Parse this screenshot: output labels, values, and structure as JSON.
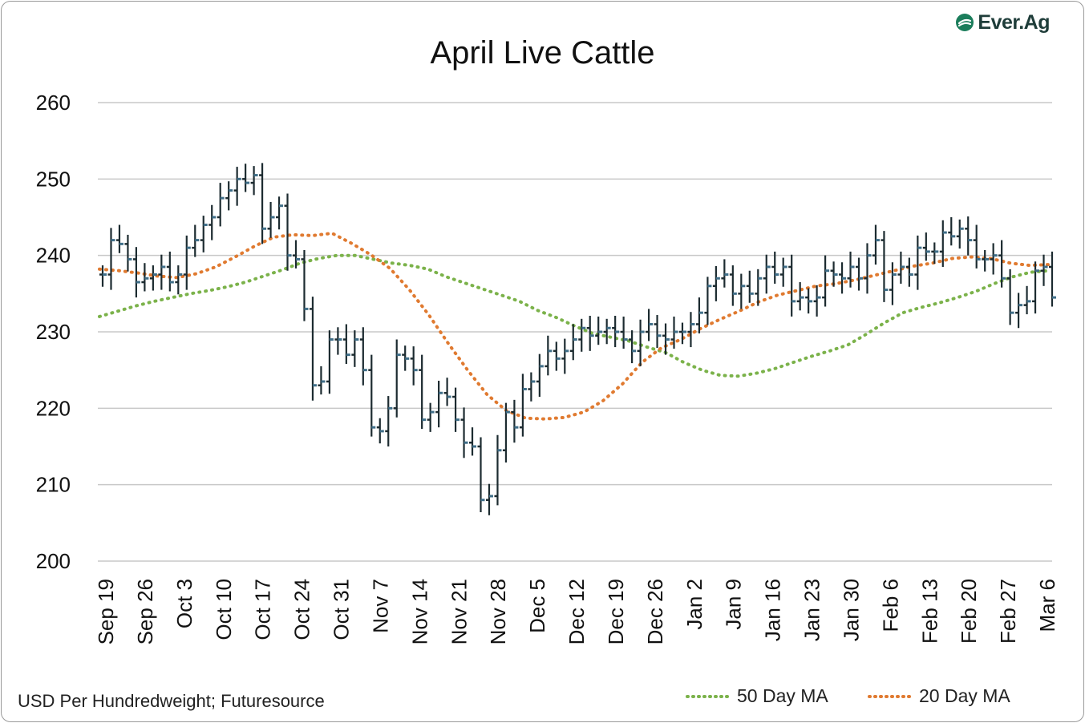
{
  "brand": {
    "name": "Ever.Ag",
    "icon": "ever-ag-leaf-icon"
  },
  "footer": {
    "source": "USD Per Hundredweight; Futuresource"
  },
  "legend": [
    {
      "label": "50 Day MA",
      "color": "#7bb24a"
    },
    {
      "label": "20 Day MA",
      "color": "#e07a30"
    }
  ],
  "chart_data": {
    "type": "ohlc",
    "title": "April Live Cattle",
    "ylabel": "USD Per Hundredweight",
    "ylim": [
      200,
      260
    ],
    "yticks": [
      200,
      210,
      220,
      230,
      240,
      250,
      260
    ],
    "xtick_labels": [
      "Sep 19",
      "Sep 26",
      "Oct 3",
      "Oct 10",
      "Oct 17",
      "Oct 24",
      "Oct 31",
      "Nov 7",
      "Nov 14",
      "Nov 21",
      "Nov 28",
      "Dec 5",
      "Dec 12",
      "Dec 19",
      "Dec 26",
      "Jan 2",
      "Jan 9",
      "Jan 16",
      "Jan 23",
      "Jan 30",
      "Feb 6",
      "Feb 13",
      "Feb 20",
      "Feb 27",
      "Mar 6"
    ],
    "bar_color": "#1c2b30",
    "closes": [
      237.5,
      242.0,
      241.5,
      239.5,
      236.5,
      237.0,
      237.5,
      238.5,
      236.5,
      237.5,
      241.0,
      242.0,
      244.0,
      245.0,
      247.5,
      248.5,
      250.0,
      249.5,
      250.5,
      243.5,
      245.0,
      246.5,
      240.0,
      239.5,
      233.0,
      223.0,
      223.5,
      229.0,
      229.0,
      227.0,
      229.0,
      225.0,
      217.5,
      217.0,
      220.0,
      227.0,
      226.5,
      225.0,
      218.5,
      219.5,
      222.0,
      221.5,
      218.5,
      215.5,
      215.0,
      208.0,
      208.5,
      214.5,
      219.5,
      217.5,
      222.5,
      223.5,
      225.5,
      227.5,
      226.5,
      227.5,
      229.0,
      230.5,
      229.5,
      230.0,
      230.5,
      230.0,
      229.0,
      227.5,
      230.0,
      231.0,
      229.5,
      229.0,
      230.0,
      230.0,
      231.0,
      232.5,
      236.0,
      237.0,
      237.5,
      235.0,
      236.0,
      235.0,
      237.0,
      238.5,
      237.5,
      238.5,
      234.0,
      234.5,
      234.0,
      234.5,
      238.0,
      237.5,
      237.0,
      238.5,
      237.0,
      240.0,
      242.0,
      235.5,
      237.5,
      238.5,
      237.5,
      241.0,
      240.5,
      240.5,
      243.0,
      242.5,
      243.5,
      242.0,
      239.5,
      239.5,
      240.0,
      237.0,
      232.5,
      233.5,
      234.0,
      238.0,
      238.5,
      234.5
    ],
    "series": [
      {
        "name": "50 Day MA",
        "color": "#7bb24a",
        "values": [
          232.0,
          232.7,
          233.4,
          234.0,
          234.5,
          235.0,
          235.4,
          235.9,
          236.5,
          237.3,
          238.1,
          239.0,
          239.6,
          240.0,
          240.0,
          239.5,
          239.0,
          238.7,
          238.2,
          237.2,
          236.4,
          235.6,
          234.8,
          234.0,
          232.8,
          231.9,
          230.8,
          229.8,
          229.3,
          228.8,
          228.0,
          227.3,
          226.0,
          225.0,
          224.3,
          224.2,
          224.6,
          225.2,
          226.0,
          226.8,
          227.5,
          228.3,
          229.7,
          231.2,
          232.5,
          233.2,
          233.8,
          234.5,
          235.3,
          236.3,
          237.2,
          237.8,
          238.0
        ]
      },
      {
        "name": "20 Day MA",
        "color": "#e07a30",
        "values": [
          238.2,
          238.0,
          237.7,
          237.3,
          237.1,
          237.6,
          238.5,
          239.8,
          241.2,
          242.4,
          242.7,
          242.6,
          242.9,
          241.6,
          240.1,
          238.3,
          235.5,
          232.2,
          228.5,
          225.0,
          221.8,
          219.7,
          218.7,
          218.6,
          218.8,
          219.5,
          221.0,
          223.2,
          226.0,
          227.9,
          229.0,
          230.4,
          231.6,
          232.7,
          233.9,
          234.8,
          235.4,
          236.0,
          236.3,
          236.8,
          237.4,
          238.0,
          238.6,
          239.0,
          239.6,
          239.8,
          239.6,
          239.0,
          238.7,
          238.8
        ]
      }
    ]
  }
}
